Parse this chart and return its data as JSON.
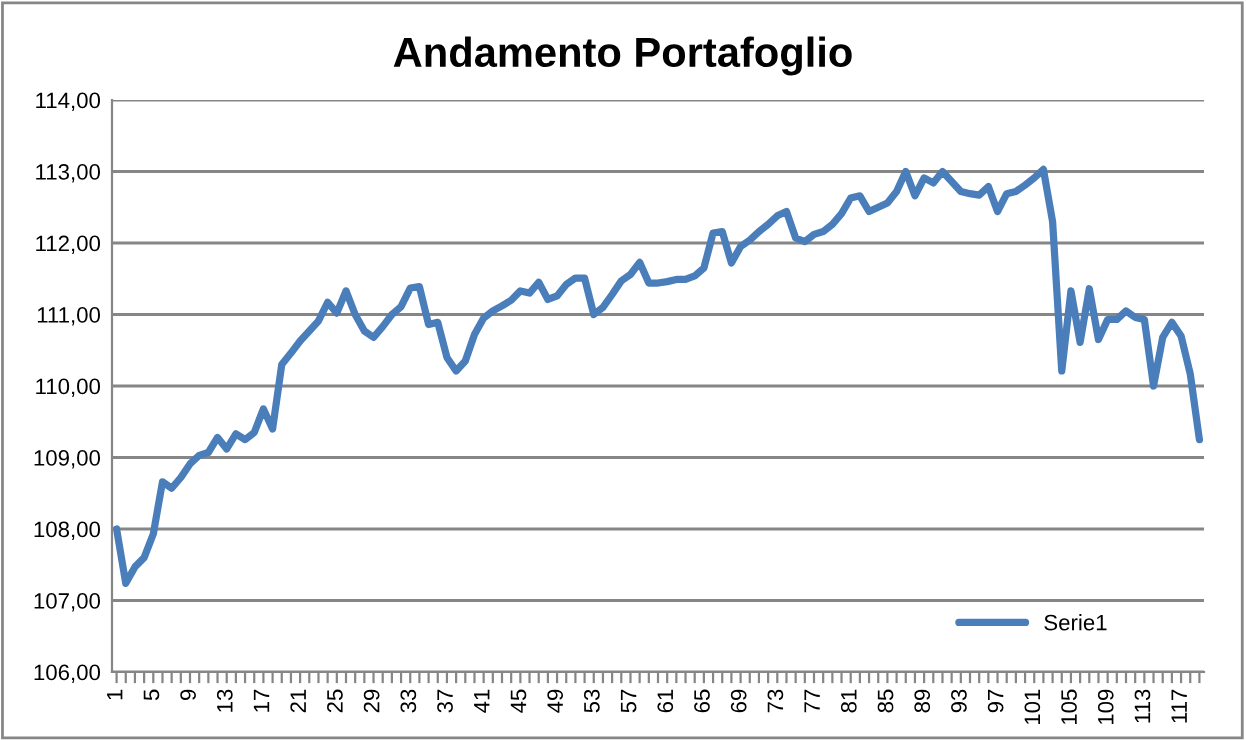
{
  "chart_data": {
    "type": "line",
    "title": "Andamento Portafoglio",
    "categories": [
      "1",
      null,
      null,
      null,
      "5",
      null,
      null,
      null,
      "9",
      null,
      null,
      null,
      "13",
      null,
      null,
      null,
      "17",
      null,
      null,
      null,
      "21",
      null,
      null,
      null,
      "25",
      null,
      null,
      null,
      "29",
      null,
      null,
      null,
      "33",
      null,
      null,
      null,
      "37",
      null,
      null,
      null,
      "41",
      null,
      null,
      null,
      "45",
      null,
      null,
      null,
      "49",
      null,
      null,
      null,
      "53",
      null,
      null,
      null,
      "57",
      null,
      null,
      null,
      "61",
      null,
      null,
      null,
      "65",
      null,
      null,
      null,
      "69",
      null,
      null,
      null,
      "73",
      null,
      null,
      null,
      "77",
      null,
      null,
      null,
      "81",
      null,
      null,
      null,
      "85",
      null,
      null,
      null,
      "89",
      null,
      null,
      null,
      "93",
      null,
      null,
      null,
      "97",
      null,
      null,
      null,
      "101",
      null,
      null,
      null,
      "105",
      null,
      null,
      null,
      "109",
      null,
      null,
      null,
      "113",
      null,
      null,
      null,
      "117",
      null,
      null
    ],
    "series": [
      {
        "name": "Serie1",
        "color": "#4a7ebb",
        "values": [
          108.0,
          107.24,
          107.47,
          107.6,
          107.93,
          108.66,
          108.57,
          108.72,
          108.91,
          109.03,
          109.07,
          109.28,
          109.12,
          109.33,
          109.25,
          109.35,
          109.68,
          109.4,
          110.3,
          110.46,
          110.63,
          110.77,
          110.91,
          111.17,
          111.02,
          111.33,
          111.0,
          110.77,
          110.68,
          110.83,
          111.0,
          111.11,
          111.37,
          111.39,
          110.86,
          110.89,
          110.4,
          110.21,
          110.35,
          110.72,
          110.95,
          111.05,
          111.12,
          111.2,
          111.33,
          111.3,
          111.45,
          111.21,
          111.26,
          111.42,
          111.51,
          111.51,
          111.0,
          111.1,
          111.28,
          111.47,
          111.56,
          111.73,
          111.44,
          111.44,
          111.46,
          111.49,
          111.49,
          111.54,
          111.65,
          112.14,
          112.16,
          111.72,
          111.95,
          112.04,
          112.16,
          112.26,
          112.38,
          112.44,
          112.07,
          112.02,
          112.12,
          112.16,
          112.26,
          112.41,
          112.63,
          112.66,
          112.44,
          112.5,
          112.56,
          112.72,
          113.0,
          112.66,
          112.91,
          112.84,
          113.0,
          112.86,
          112.72,
          112.69,
          112.67,
          112.79,
          112.44,
          112.69,
          112.72,
          112.81,
          112.91,
          113.03,
          112.3,
          110.21,
          111.33,
          110.61,
          111.36,
          110.65,
          110.93,
          110.93,
          111.05,
          110.96,
          110.93,
          110.0,
          110.68,
          110.89,
          110.7,
          110.17,
          109.25
        ]
      }
    ],
    "ylim": [
      106,
      114
    ],
    "yticks": [
      {
        "value": 106,
        "label": "106,00"
      },
      {
        "value": 107,
        "label": "107,00"
      },
      {
        "value": 108,
        "label": "108,00"
      },
      {
        "value": 109,
        "label": "109,00"
      },
      {
        "value": 110,
        "label": "110,00"
      },
      {
        "value": 111,
        "label": "111,00"
      },
      {
        "value": 112,
        "label": "112,00"
      },
      {
        "value": 113,
        "label": "113,00"
      },
      {
        "value": 114,
        "label": "114,00"
      }
    ],
    "grid": "y",
    "legend": "lower right",
    "marker": "none",
    "line_style": "solid"
  }
}
